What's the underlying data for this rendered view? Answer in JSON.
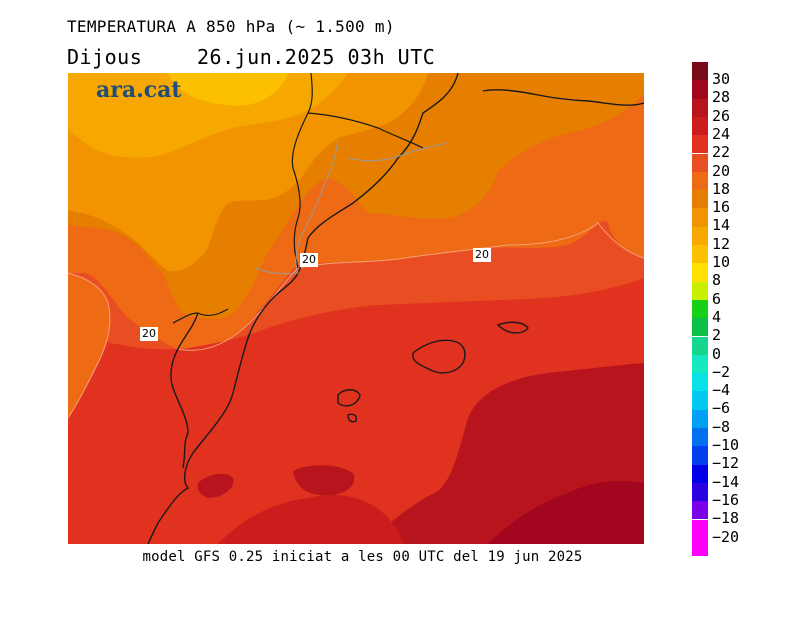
{
  "header": {
    "title": "TEMPERATURA A 850 hPa (~ 1.500 m)",
    "day": "Dijous",
    "datetime": "26.jun.2025 03h UTC"
  },
  "logo": {
    "text": "ara.cat"
  },
  "footer": {
    "text": "model GFS 0.25 iniciat a les 00 UTC del 19 jun 2025"
  },
  "contour_labels": [
    "20",
    "20",
    "20"
  ],
  "legend": {
    "levels": [
      {
        "label": "30",
        "color": "#7a0a1a"
      },
      {
        "label": "28",
        "color": "#a3071f"
      },
      {
        "label": "26",
        "color": "#b8141e"
      },
      {
        "label": "24",
        "color": "#cc1c1c"
      },
      {
        "label": "22",
        "color": "#e0321e"
      },
      {
        "label": "20",
        "color": "#e84e22"
      },
      {
        "label": "18",
        "color": "#ef6a14"
      },
      {
        "label": "16",
        "color": "#e67e00"
      },
      {
        "label": "14",
        "color": "#f29400"
      },
      {
        "label": "12",
        "color": "#f7a800"
      },
      {
        "label": "10",
        "color": "#fcc000"
      },
      {
        "label": "8",
        "color": "#ffe000"
      },
      {
        "label": "6",
        "color": "#c8f000"
      },
      {
        "label": "4",
        "color": "#16d016"
      },
      {
        "label": "2",
        "color": "#0ac048"
      },
      {
        "label": "0",
        "color": "#14d68c"
      },
      {
        "label": "−2",
        "color": "#16e8c0"
      },
      {
        "label": "−4",
        "color": "#0ae0e8"
      },
      {
        "label": "−6",
        "color": "#00c8f0"
      },
      {
        "label": "−8",
        "color": "#00a0f5"
      },
      {
        "label": "−10",
        "color": "#0070f0"
      },
      {
        "label": "−12",
        "color": "#0040f0"
      },
      {
        "label": "−14",
        "color": "#0000e8"
      },
      {
        "label": "−16",
        "color": "#2a00e0"
      },
      {
        "label": "−18",
        "color": "#7a00e8"
      },
      {
        "label": "−20",
        "color": "#ff00ff"
      }
    ],
    "bottom_color": "#ff00ff"
  }
}
